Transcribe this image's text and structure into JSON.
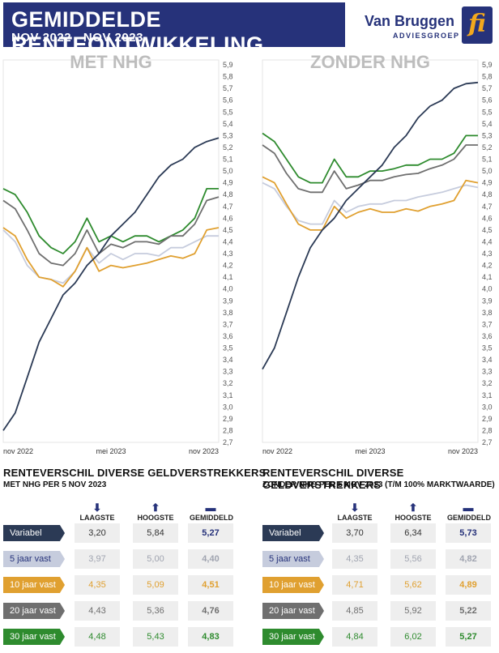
{
  "header": {
    "title": "GEMIDDELDE RENTEONTWIKKELING",
    "subtitle": "NOV 2022 - NOV 2023",
    "logo_name": "Van Bruggen",
    "logo_sub": "ADVIESGROEP",
    "logo_mark": "fi"
  },
  "colors": {
    "navy": "#26327a",
    "variabel": "#2b3a55",
    "vast5": "#c6ccdd",
    "vast10": "#e0a030",
    "vast20": "#6f6f6f",
    "vast30": "#2e8b2e"
  },
  "chart_data": [
    {
      "type": "line",
      "title": "MET NHG",
      "x_tick_labels": [
        "nov 2022",
        "mei 2023",
        "nov 2023"
      ],
      "ylim": [
        2.7,
        5.9
      ],
      "y_ticks": [
        "5,9",
        "5,8",
        "5,7",
        "5,6",
        "5,5",
        "5,4",
        "5,3",
        "5,2",
        "5,1",
        "5,0",
        "4,9",
        "4,8",
        "4,7",
        "4,6",
        "4,5",
        "4,4",
        "4,3",
        "4,2",
        "4,1",
        "4,0",
        "3,9",
        "3,8",
        "3,7",
        "3,6",
        "3,5",
        "3,4",
        "3,3",
        "3,2",
        "3,1",
        "3,0",
        "2,9",
        "2,8",
        "2,7"
      ],
      "series": [
        {
          "key": "vast30",
          "values": [
            4.85,
            4.8,
            4.65,
            4.45,
            4.35,
            4.3,
            4.4,
            4.6,
            4.4,
            4.45,
            4.4,
            4.45,
            4.45,
            4.4,
            4.45,
            4.5,
            4.6,
            4.85,
            4.85
          ]
        },
        {
          "key": "vast20",
          "values": [
            4.75,
            4.68,
            4.5,
            4.3,
            4.22,
            4.2,
            4.3,
            4.5,
            4.3,
            4.38,
            4.35,
            4.4,
            4.4,
            4.38,
            4.45,
            4.45,
            4.55,
            4.75,
            4.78
          ]
        },
        {
          "key": "vast5",
          "values": [
            4.5,
            4.4,
            4.2,
            4.1,
            4.08,
            4.05,
            4.15,
            4.35,
            4.22,
            4.3,
            4.25,
            4.3,
            4.3,
            4.28,
            4.35,
            4.35,
            4.4,
            4.45,
            4.45
          ]
        },
        {
          "key": "vast10",
          "values": [
            4.52,
            4.45,
            4.25,
            4.1,
            4.08,
            4.02,
            4.15,
            4.35,
            4.15,
            4.2,
            4.18,
            4.2,
            4.22,
            4.25,
            4.28,
            4.26,
            4.3,
            4.5,
            4.52
          ]
        },
        {
          "key": "variabel",
          "values": [
            2.8,
            2.95,
            3.25,
            3.55,
            3.75,
            3.95,
            4.05,
            4.2,
            4.3,
            4.45,
            4.55,
            4.65,
            4.8,
            4.95,
            5.05,
            5.1,
            5.2,
            5.25,
            5.28
          ]
        }
      ]
    },
    {
      "type": "line",
      "title": "ZONDER NHG",
      "x_tick_labels": [
        "nov 2022",
        "mei 2023",
        "nov 2023"
      ],
      "ylim": [
        2.7,
        5.9
      ],
      "y_ticks": [
        "5,9",
        "5,8",
        "5,7",
        "5,6",
        "5,5",
        "5,4",
        "5,3",
        "5,2",
        "5,1",
        "5,0",
        "4,9",
        "4,8",
        "4,7",
        "4,6",
        "4,5",
        "4,4",
        "4,3",
        "4,2",
        "4,1",
        "4,0",
        "3,9",
        "3,8",
        "3,7",
        "3,6",
        "3,5",
        "3,4",
        "3,3",
        "3,2",
        "3,1",
        "3,0",
        "2,9",
        "2,8",
        "2,7"
      ],
      "series": [
        {
          "key": "vast30",
          "values": [
            5.32,
            5.25,
            5.1,
            4.95,
            4.9,
            4.9,
            5.1,
            4.95,
            4.95,
            5.0,
            5.0,
            5.02,
            5.05,
            5.05,
            5.1,
            5.1,
            5.15,
            5.3,
            5.3
          ]
        },
        {
          "key": "vast20",
          "values": [
            5.22,
            5.15,
            4.98,
            4.85,
            4.82,
            4.82,
            5.0,
            4.85,
            4.88,
            4.92,
            4.92,
            4.95,
            4.97,
            4.98,
            5.02,
            5.05,
            5.1,
            5.22,
            5.22
          ]
        },
        {
          "key": "vast5",
          "values": [
            4.9,
            4.85,
            4.7,
            4.58,
            4.55,
            4.55,
            4.75,
            4.65,
            4.7,
            4.72,
            4.72,
            4.75,
            4.75,
            4.78,
            4.8,
            4.82,
            4.85,
            4.88,
            4.86
          ]
        },
        {
          "key": "vast10",
          "values": [
            4.95,
            4.9,
            4.72,
            4.55,
            4.5,
            4.5,
            4.7,
            4.6,
            4.65,
            4.68,
            4.65,
            4.65,
            4.68,
            4.66,
            4.7,
            4.72,
            4.75,
            4.92,
            4.9
          ]
        },
        {
          "key": "variabel",
          "values": [
            3.32,
            3.5,
            3.8,
            4.1,
            4.35,
            4.5,
            4.6,
            4.75,
            4.85,
            4.95,
            5.05,
            5.2,
            5.3,
            5.45,
            5.55,
            5.6,
            5.7,
            5.74,
            5.75
          ]
        }
      ]
    }
  ],
  "tables": [
    {
      "title": "RENTEVERSCHIL DIVERSE GELDVERSTREKKERS",
      "subtitle": "MET NHG PER 5 NOV 2023",
      "col_low": "LAAGSTE",
      "col_high": "HOOGSTE",
      "col_avg": "GEMIDDELD",
      "rows": [
        {
          "key": "variabel",
          "label": "Variabel",
          "low": "3,20",
          "high": "5,84",
          "avg": "5,27"
        },
        {
          "key": "vast5",
          "label": "5 jaar vast",
          "low": "3,97",
          "high": "5,00",
          "avg": "4,40"
        },
        {
          "key": "vast10",
          "label": "10 jaar vast",
          "low": "4,35",
          "high": "5,09",
          "avg": "4,51"
        },
        {
          "key": "vast20",
          "label": "20 jaar vast",
          "low": "4,43",
          "high": "5,36",
          "avg": "4,76"
        },
        {
          "key": "vast30",
          "label": "30 jaar vast",
          "low": "4,48",
          "high": "5,43",
          "avg": "4,83"
        }
      ]
    },
    {
      "title": "RENTEVERSCHIL DIVERSE GELDVERSTREKKERS",
      "subtitle": "ZONDER NHG PER 5 NOV 2023 (T/M 100% MARKTWAARDE)",
      "col_low": "LAAGSTE",
      "col_high": "HOOGSTE",
      "col_avg": "GEMIDDELD",
      "rows": [
        {
          "key": "variabel",
          "label": "Variabel",
          "low": "3,70",
          "high": "6,34",
          "avg": "5,73"
        },
        {
          "key": "vast5",
          "label": "5 jaar vast",
          "low": "4,35",
          "high": "5,56",
          "avg": "4,82"
        },
        {
          "key": "vast10",
          "label": "10 jaar vast",
          "low": "4,71",
          "high": "5,62",
          "avg": "4,89"
        },
        {
          "key": "vast20",
          "label": "20 jaar vast",
          "low": "4,85",
          "high": "5,92",
          "avg": "5,22"
        },
        {
          "key": "vast30",
          "label": "30 jaar vast",
          "low": "4,84",
          "high": "6,02",
          "avg": "5,27"
        }
      ]
    }
  ]
}
